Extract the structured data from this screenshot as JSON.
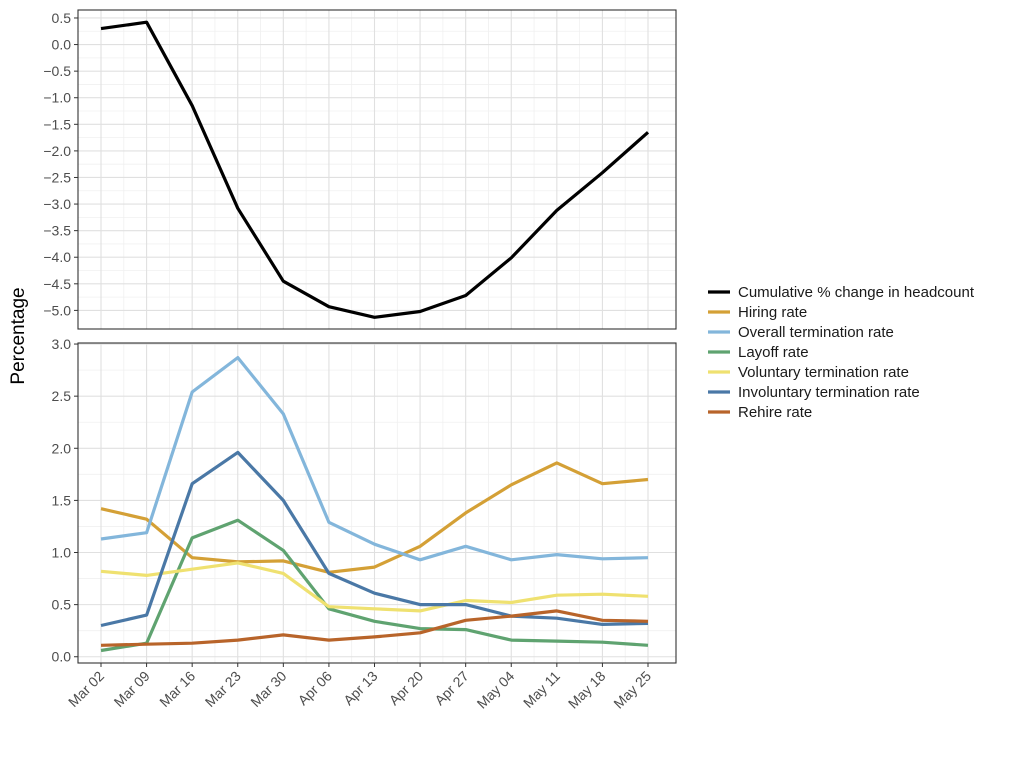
{
  "chart_data": {
    "type": "line",
    "ylabel": "Percentage",
    "x": [
      "Mar 02",
      "Mar 09",
      "Mar 16",
      "Mar 23",
      "Mar 30",
      "Apr 06",
      "Apr 13",
      "Apr 20",
      "Apr 27",
      "May 04",
      "May 11",
      "May 18",
      "May 25"
    ],
    "grid": true,
    "legend_position": "right",
    "panels": [
      {
        "id": "top",
        "ylim": [
          -5.35,
          0.65
        ],
        "yticks": [
          0.5,
          0.0,
          -0.5,
          -1.0,
          -1.5,
          -2.0,
          -2.5,
          -3.0,
          -3.5,
          -4.0,
          -4.5,
          -5.0
        ],
        "ytick_labels": [
          "0.5",
          "0.0",
          "−0.5",
          "−1.0",
          "−1.5",
          "−2.0",
          "−2.5",
          "−3.0",
          "−3.5",
          "−4.0",
          "−4.5",
          "−5.0"
        ],
        "series": [
          {
            "name": "Cumulative % change in headcount",
            "color": "#000000",
            "values": [
              0.3,
              0.42,
              -1.15,
              -3.08,
              -4.45,
              -4.93,
              -5.13,
              -5.02,
              -4.72,
              -4.01,
              -3.12,
              -2.41,
              -1.65
            ]
          }
        ]
      },
      {
        "id": "bottom",
        "ylim": [
          -0.06,
          3.01
        ],
        "yticks": [
          0.0,
          0.5,
          1.0,
          1.5,
          2.0,
          2.5,
          3.0
        ],
        "ytick_labels": [
          "0.0",
          "0.5",
          "1.0",
          "1.5",
          "2.0",
          "2.5",
          "3.0"
        ],
        "series": [
          {
            "name": "Hiring rate",
            "color": "#D4A036",
            "values": [
              1.42,
              1.32,
              0.95,
              0.91,
              0.92,
              0.81,
              0.86,
              1.06,
              1.38,
              1.65,
              1.86,
              1.66,
              1.7
            ]
          },
          {
            "name": "Overall termination rate",
            "color": "#83B6DB",
            "values": [
              1.13,
              1.19,
              2.54,
              2.87,
              2.33,
              1.29,
              1.08,
              0.93,
              1.06,
              0.93,
              0.98,
              0.94,
              0.95
            ]
          },
          {
            "name": "Layoff rate",
            "color": "#5FA370",
            "values": [
              0.06,
              0.13,
              1.14,
              1.31,
              1.02,
              0.46,
              0.34,
              0.27,
              0.26,
              0.16,
              0.15,
              0.14,
              0.11
            ]
          },
          {
            "name": "Voluntary termination rate",
            "color": "#EFE170",
            "values": [
              0.82,
              0.78,
              0.84,
              0.9,
              0.8,
              0.48,
              0.46,
              0.44,
              0.54,
              0.52,
              0.59,
              0.6,
              0.58
            ]
          },
          {
            "name": "Involuntary termination rate",
            "color": "#4A78A6",
            "values": [
              0.3,
              0.4,
              1.66,
              1.96,
              1.5,
              0.8,
              0.61,
              0.5,
              0.5,
              0.39,
              0.37,
              0.31,
              0.32
            ]
          },
          {
            "name": "Rehire rate",
            "color": "#B8642A",
            "values": [
              0.11,
              0.12,
              0.13,
              0.16,
              0.21,
              0.16,
              0.19,
              0.23,
              0.35,
              0.39,
              0.44,
              0.35,
              0.34
            ]
          }
        ]
      }
    ]
  }
}
